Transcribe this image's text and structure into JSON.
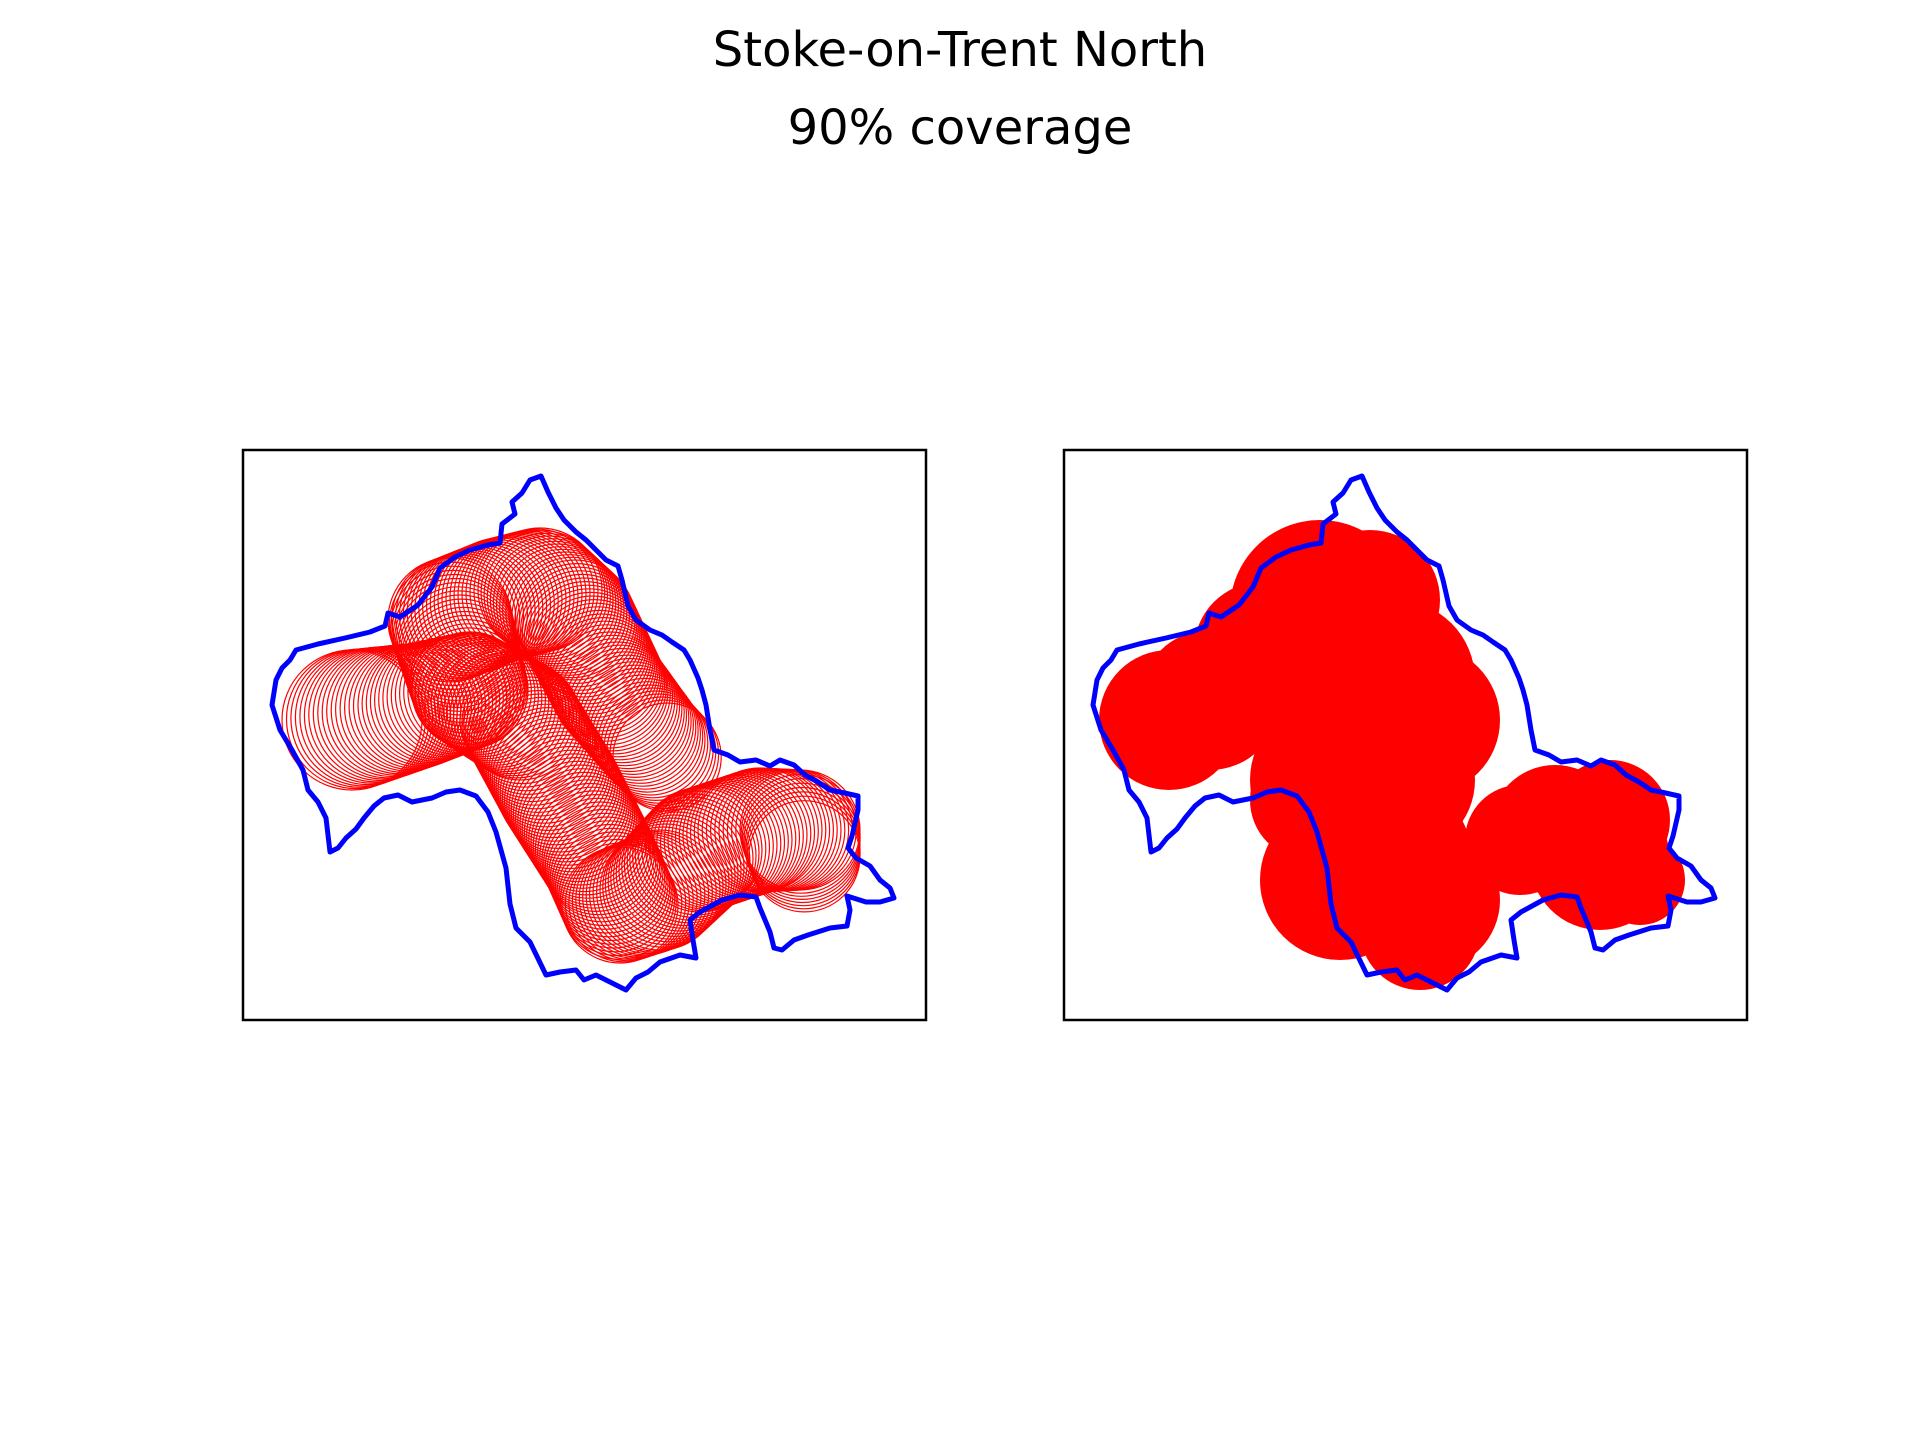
{
  "figure": {
    "title": "Stoke-on-Trent North",
    "subtitle": "90% coverage",
    "colors": {
      "boundary": "#0000ff",
      "coverage": "#ff0000",
      "frame": "#000000",
      "background": "#ffffff"
    },
    "panels": [
      {
        "name": "circle-outlines-panel",
        "style": "outline"
      },
      {
        "name": "coverage-union-panel",
        "style": "filled"
      }
    ]
  }
}
